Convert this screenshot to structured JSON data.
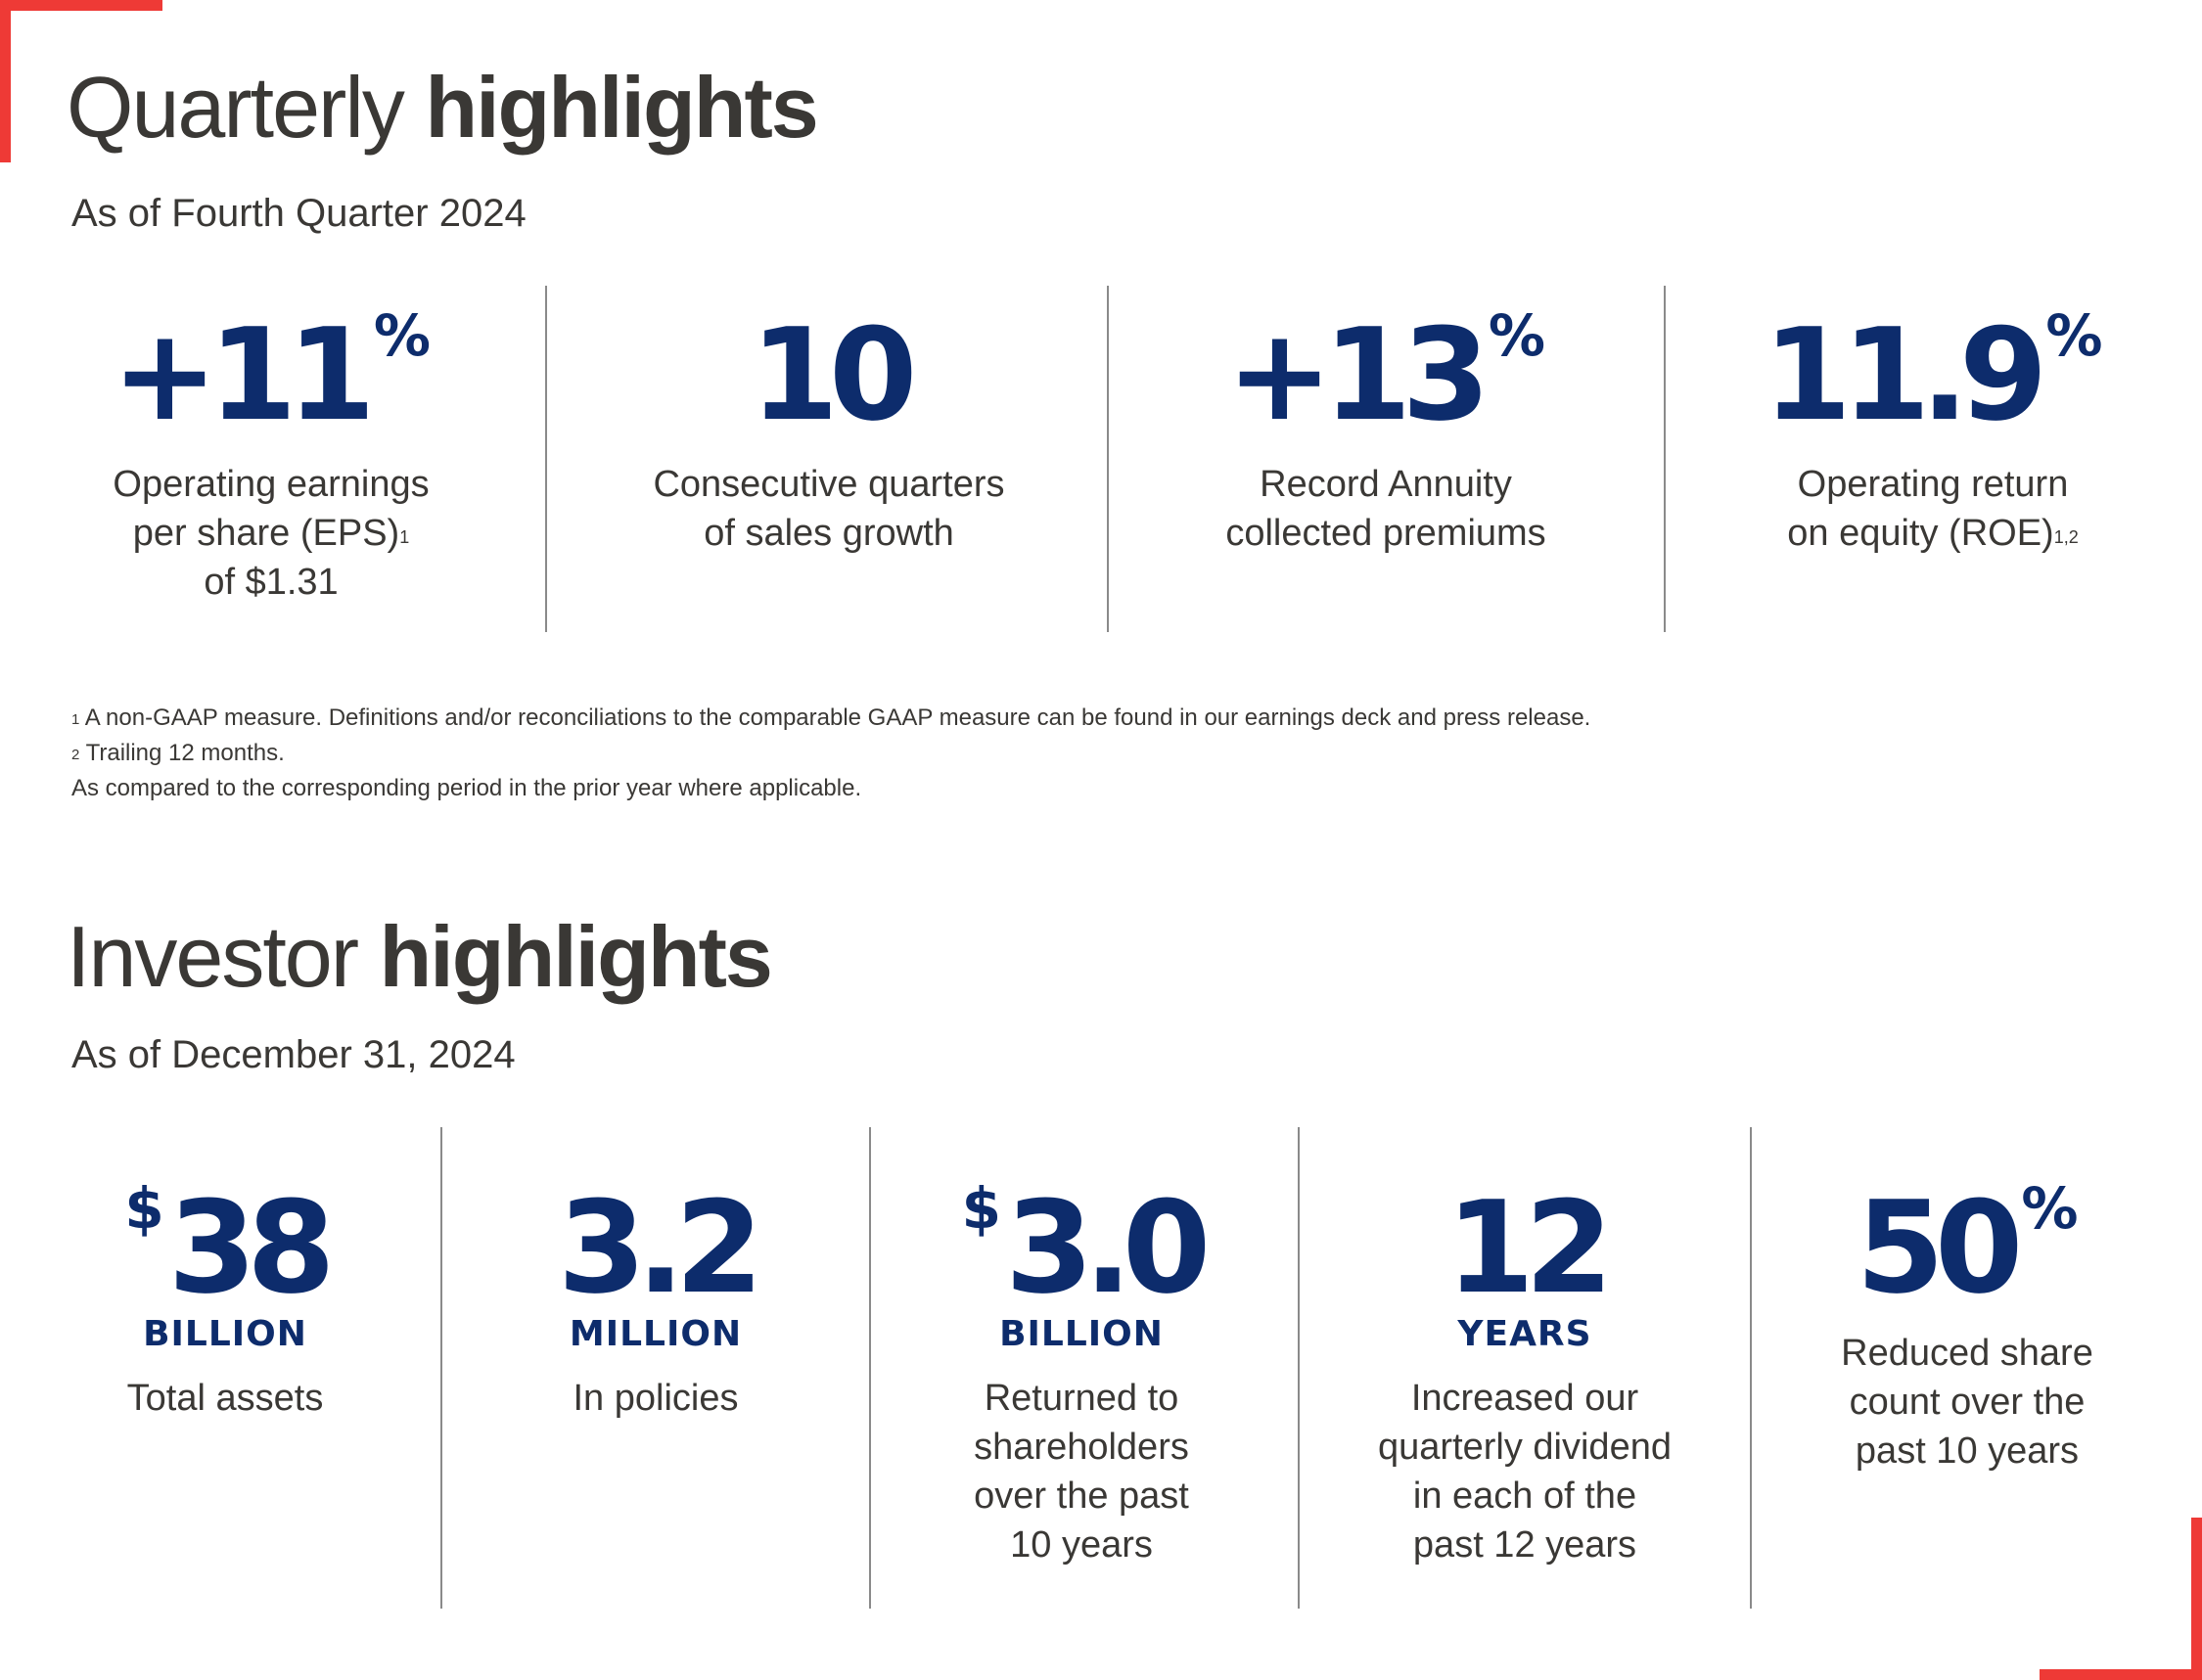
{
  "quarterly": {
    "title_light": "Quarterly",
    "title_bold": "highlights",
    "subtitle": "As of Fourth Quarter 2024",
    "stats": [
      {
        "prefix": "+",
        "value": "11",
        "suffix": "%",
        "desc_lines": [
          "Operating earnings",
          "per share (EPS)",
          "of $1.31"
        ],
        "desc_sup": "1"
      },
      {
        "prefix": "",
        "value": "10",
        "suffix": "",
        "desc_lines": [
          "Consecutive quarters",
          "of sales growth"
        ]
      },
      {
        "prefix": "+",
        "value": "13",
        "suffix": "%",
        "desc_lines": [
          "Record Annuity",
          "collected premiums"
        ]
      },
      {
        "prefix": "",
        "value": "11.9",
        "suffix": "%",
        "desc_lines": [
          "Operating return",
          "on equity (ROE)"
        ],
        "desc_sup": "1,2"
      }
    ]
  },
  "footnotes": {
    "note1_mark": "1",
    "note1": "A non-GAAP measure. Definitions and/or reconciliations to the comparable GAAP measure can be found in our earnings deck and press release.",
    "note2_mark": "2",
    "note2": "Trailing 12 months.",
    "note3": "As compared to the corresponding period in the prior year where applicable."
  },
  "investor": {
    "title_light": "Investor",
    "title_bold": "highlights",
    "subtitle": "As of December 31, 2024",
    "stats": [
      {
        "prefix": "$",
        "value": "38",
        "suffix": "",
        "unit": "BILLION",
        "desc_lines": [
          "Total assets"
        ]
      },
      {
        "prefix": "",
        "value": "3.2",
        "suffix": "",
        "unit": "MILLION",
        "desc_lines": [
          "In policies"
        ]
      },
      {
        "prefix": "$",
        "value": "3.0",
        "suffix": "",
        "unit": "BILLION",
        "desc_lines": [
          "Returned to",
          "shareholders",
          "over the past",
          "10 years"
        ]
      },
      {
        "prefix": "",
        "value": "12",
        "suffix": "",
        "unit": "YEARS",
        "desc_lines": [
          "Increased our",
          "quarterly dividend",
          "in each of the",
          "past 12 years"
        ]
      },
      {
        "prefix": "",
        "value": "50",
        "suffix": "%",
        "unit": "",
        "desc_lines": [
          "Reduced share",
          "count over the",
          "past 10 years"
        ]
      }
    ]
  },
  "colors": {
    "accent": "#ee3a36",
    "navy": "#0d2c6c",
    "text": "#3a3835"
  }
}
